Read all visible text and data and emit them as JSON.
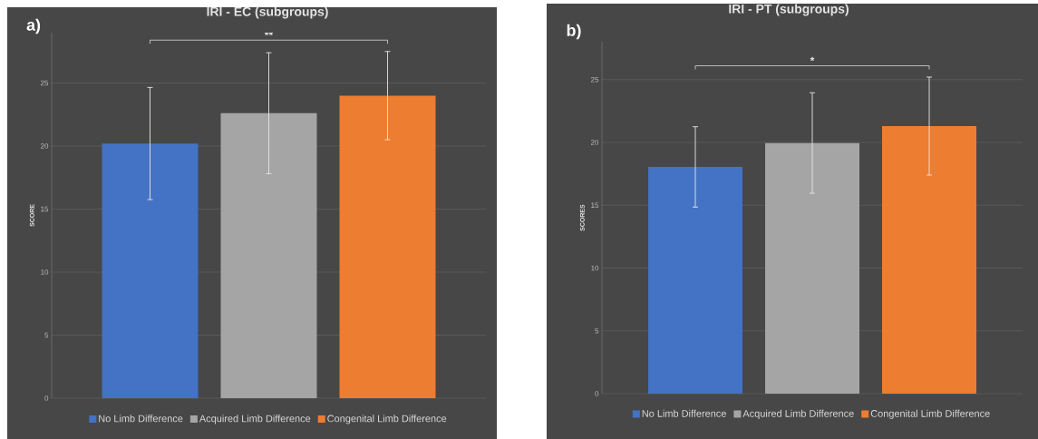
{
  "chart_data": [
    {
      "type": "bar",
      "title": "IRI - EC (subgroups)",
      "ylabel": "SCORE",
      "categories": [
        null
      ],
      "series": [
        {
          "name": "No Limb Difference",
          "color": "#4472c4",
          "values": [
            20.2
          ],
          "errors": [
            4.45
          ]
        },
        {
          "name": "Acquired Limb Difference",
          "color": "#a5a5a5",
          "values": [
            22.6
          ],
          "errors": [
            4.8
          ]
        },
        {
          "name": "Congenital Limb Difference",
          "color": "#ed7d31",
          "values": [
            24.0
          ],
          "errors": [
            3.5
          ]
        }
      ],
      "ylim": [
        0,
        29
      ],
      "yticks": [
        0,
        5,
        10,
        15,
        20,
        25
      ],
      "grid": "y",
      "legend": "bottom",
      "annotations": [
        "a)",
        "**"
      ]
    },
    {
      "type": "bar",
      "title": "IRI - PT (subgroups)",
      "ylabel": "SCORES",
      "categories": [
        null
      ],
      "series": [
        {
          "name": "No Limb Difference",
          "color": "#4472c4",
          "values": [
            18.05
          ],
          "errors": [
            3.2
          ]
        },
        {
          "name": "Acquired Limb Difference",
          "color": "#a5a5a5",
          "values": [
            19.95
          ],
          "errors": [
            4.0
          ]
        },
        {
          "name": "Congenital Limb Difference",
          "color": "#ed7d31",
          "values": [
            21.3
          ],
          "errors": [
            3.9
          ]
        }
      ],
      "ylim": [
        0,
        28
      ],
      "yticks": [
        0,
        5,
        10,
        15,
        20,
        25
      ],
      "grid": "y",
      "legend": "bottom",
      "annotations": [
        "b)",
        "*"
      ]
    }
  ]
}
